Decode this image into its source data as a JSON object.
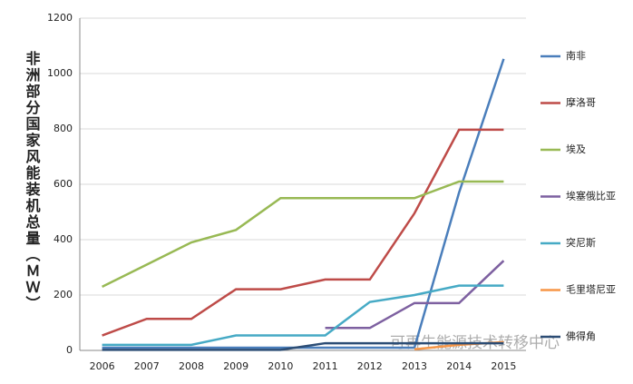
{
  "chart_data": {
    "type": "line",
    "y_label": "非洲部分国家风能装机总量（ＭＷ）",
    "annotation": "可再生能源技术转移中心",
    "categories": [
      "2006",
      "2007",
      "2008",
      "2009",
      "2010",
      "2011",
      "2012",
      "2013",
      "2014",
      "2015"
    ],
    "series": [
      {
        "name": "南非",
        "color": "#4a7ebb",
        "values": [
          10,
          10,
          10,
          10,
          10,
          10,
          10,
          10,
          570,
          1053
        ]
      },
      {
        "name": "摩洛哥",
        "color": "#be4b48",
        "values": [
          54,
          114,
          114,
          221,
          221,
          256,
          256,
          495,
          797,
          797
        ]
      },
      {
        "name": "埃及",
        "color": "#98b954",
        "values": [
          230,
          310,
          390,
          435,
          550,
          550,
          550,
          550,
          610,
          610
        ]
      },
      {
        "name": "埃塞俄比亚",
        "color": "#7d60a0",
        "values": [
          null,
          null,
          null,
          null,
          null,
          81,
          81,
          171,
          171,
          324
        ]
      },
      {
        "name": "突尼斯",
        "color": "#46aac5",
        "values": [
          20,
          20,
          20,
          54,
          54,
          54,
          175,
          200,
          234,
          234
        ]
      },
      {
        "name": "毛里塔尼亚",
        "color": "#f79646",
        "values": [
          null,
          null,
          null,
          null,
          null,
          null,
          null,
          4,
          20,
          30
        ]
      },
      {
        "name": "佛得角",
        "color": "#2c4d75",
        "values": [
          2,
          2,
          2,
          2,
          2,
          26,
          26,
          26,
          26,
          26
        ]
      }
    ],
    "ylim": [
      0,
      1200
    ],
    "yticks": [
      0,
      200,
      400,
      600,
      800,
      1000,
      1200
    ],
    "grid": true,
    "legend": "right"
  }
}
